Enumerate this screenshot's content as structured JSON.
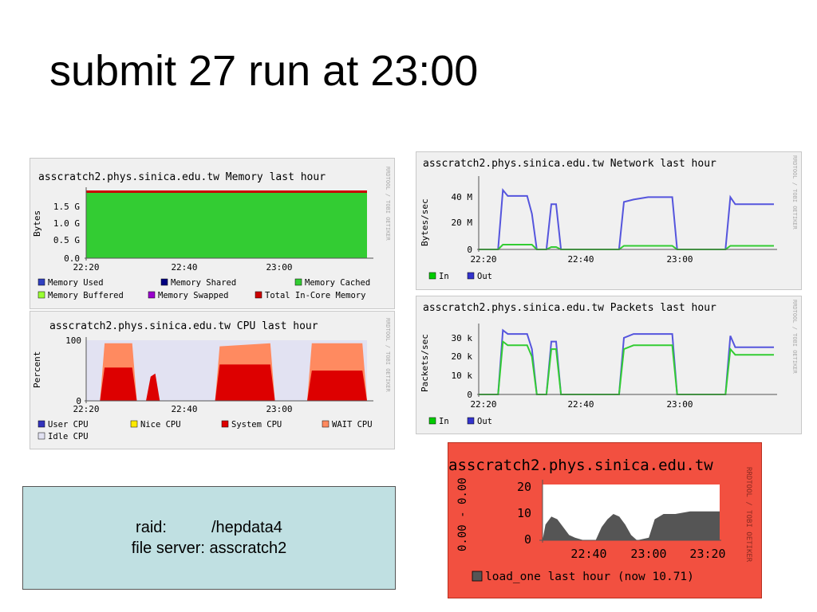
{
  "slide": {
    "title": "submit 27 run at 23:00"
  },
  "info_box": {
    "raid_label": "raid:",
    "raid_value": "/hepdata4",
    "fileserver_label": "file server:",
    "fileserver_value": "asscratch2"
  },
  "rrdtool_tag": "RRDTOOL / TOBI OETIKER",
  "chart_data": [
    {
      "id": "memory",
      "type": "area",
      "title": "asscratch2.phys.sinica.edu.tw Memory last hour",
      "ylabel": "Bytes",
      "yticks": [
        "0.0",
        "0.5 G",
        "1.0 G",
        "1.5 G"
      ],
      "xticks": [
        "22:20",
        "22:40",
        "23:00"
      ],
      "legend": [
        {
          "label": "Memory Used",
          "color": "#3040c0"
        },
        {
          "label": "Memory Shared",
          "color": "#000080"
        },
        {
          "label": "Memory Cached",
          "color": "#33cc33"
        },
        {
          "label": "Memory Buffered",
          "color": "#99ff33"
        },
        {
          "label": "Memory Swapped",
          "color": "#9900cc"
        },
        {
          "label": "Total In-Core Memory",
          "color": "#cc0000"
        }
      ]
    },
    {
      "id": "cpu",
      "type": "area",
      "title": "asscratch2.phys.sinica.edu.tw CPU last hour",
      "ylabel": "Percent",
      "yticks": [
        "0",
        "100"
      ],
      "xticks": [
        "22:20",
        "22:40",
        "23:00"
      ],
      "legend": [
        {
          "label": "User CPU",
          "color": "#3333bb"
        },
        {
          "label": "Nice CPU",
          "color": "#ffea00"
        },
        {
          "label": "System CPU",
          "color": "#dd0000"
        },
        {
          "label": "WAIT CPU",
          "color": "#ff8a60"
        },
        {
          "label": "Idle CPU",
          "color": "#e2e2f2"
        }
      ],
      "series": [
        {
          "name": "System CPU",
          "points": [
            [
              0,
              0
            ],
            [
              3,
              0
            ],
            [
              4,
              55
            ],
            [
              10,
              55
            ],
            [
              11,
              0
            ],
            [
              13,
              0
            ],
            [
              14,
              40
            ],
            [
              15,
              45
            ],
            [
              16,
              0
            ],
            [
              28,
              0
            ],
            [
              29,
              60
            ],
            [
              40,
              60
            ],
            [
              41,
              0
            ],
            [
              48,
              0
            ],
            [
              49,
              50
            ],
            [
              60,
              50
            ],
            [
              61,
              0
            ]
          ]
        },
        {
          "name": "WAIT CPU",
          "points": [
            [
              0,
              0
            ],
            [
              3,
              0
            ],
            [
              4,
              95
            ],
            [
              10,
              95
            ],
            [
              11,
              0
            ],
            [
              28,
              0
            ],
            [
              29,
              90
            ],
            [
              40,
              95
            ],
            [
              41,
              0
            ],
            [
              48,
              0
            ],
            [
              49,
              95
            ],
            [
              60,
              95
            ],
            [
              61,
              0
            ]
          ]
        }
      ]
    },
    {
      "id": "network",
      "type": "line",
      "title": "asscratch2.phys.sinica.edu.tw Network last hour",
      "ylabel": "Bytes/sec",
      "yticks": [
        "0",
        "20 M",
        "40 M"
      ],
      "xticks": [
        "22:20",
        "22:40",
        "23:00"
      ],
      "legend": [
        {
          "label": "In",
          "color": "#00cc00"
        },
        {
          "label": "Out",
          "color": "#3333cc"
        }
      ],
      "series": [
        {
          "name": "Out",
          "points": [
            [
              0,
              0
            ],
            [
              4,
              0
            ],
            [
              5,
              50
            ],
            [
              6,
              45
            ],
            [
              10,
              45
            ],
            [
              11,
              30
            ],
            [
              12,
              0
            ],
            [
              14,
              0
            ],
            [
              15,
              38
            ],
            [
              16,
              38
            ],
            [
              17,
              0
            ],
            [
              29,
              0
            ],
            [
              30,
              40
            ],
            [
              32,
              42
            ],
            [
              35,
              44
            ],
            [
              40,
              44
            ],
            [
              41,
              0
            ],
            [
              51,
              0
            ],
            [
              52,
              44
            ],
            [
              53,
              38
            ],
            [
              60,
              38
            ],
            [
              61,
              38
            ]
          ]
        },
        {
          "name": "In",
          "points": [
            [
              0,
              0
            ],
            [
              4,
              0
            ],
            [
              5,
              4
            ],
            [
              11,
              4
            ],
            [
              12,
              0
            ],
            [
              14,
              0
            ],
            [
              15,
              2
            ],
            [
              16,
              2
            ],
            [
              17,
              0
            ],
            [
              29,
              0
            ],
            [
              30,
              3
            ],
            [
              40,
              3
            ],
            [
              41,
              0
            ],
            [
              51,
              0
            ],
            [
              52,
              3
            ],
            [
              61,
              3
            ]
          ]
        }
      ]
    },
    {
      "id": "packets",
      "type": "line",
      "title": "asscratch2.phys.sinica.edu.tw Packets last hour",
      "ylabel": "Packets/sec",
      "yticks": [
        "0",
        "10 k",
        "20 k",
        "30 k"
      ],
      "xticks": [
        "22:20",
        "22:40",
        "23:00"
      ],
      "legend": [
        {
          "label": "In",
          "color": "#00cc00"
        },
        {
          "label": "Out",
          "color": "#3333cc"
        }
      ],
      "series": [
        {
          "name": "Out",
          "points": [
            [
              0,
              0
            ],
            [
              4,
              0
            ],
            [
              5,
              34
            ],
            [
              6,
              32
            ],
            [
              10,
              32
            ],
            [
              11,
              24
            ],
            [
              12,
              0
            ],
            [
              14,
              0
            ],
            [
              15,
              28
            ],
            [
              16,
              28
            ],
            [
              17,
              0
            ],
            [
              29,
              0
            ],
            [
              30,
              30
            ],
            [
              32,
              32
            ],
            [
              40,
              32
            ],
            [
              41,
              0
            ],
            [
              51,
              0
            ],
            [
              52,
              31
            ],
            [
              53,
              25
            ],
            [
              61,
              25
            ]
          ]
        },
        {
          "name": "In",
          "points": [
            [
              0,
              0
            ],
            [
              4,
              0
            ],
            [
              5,
              28
            ],
            [
              6,
              26
            ],
            [
              10,
              26
            ],
            [
              11,
              20
            ],
            [
              12,
              0
            ],
            [
              14,
              0
            ],
            [
              15,
              24
            ],
            [
              16,
              24
            ],
            [
              17,
              0
            ],
            [
              29,
              0
            ],
            [
              30,
              24
            ],
            [
              32,
              26
            ],
            [
              40,
              26
            ],
            [
              41,
              0
            ],
            [
              51,
              0
            ],
            [
              52,
              24
            ],
            [
              53,
              21
            ],
            [
              61,
              21
            ]
          ]
        }
      ]
    },
    {
      "id": "load",
      "type": "area",
      "title": "asscratch2.phys.sinica.edu.tw",
      "ylabel": "0.00 - 0.00",
      "yticks": [
        "0",
        "10",
        "20"
      ],
      "xticks": [
        "22:40",
        "23:00",
        "23:20"
      ],
      "legend": [
        {
          "label": "load_one last hour (now 10.71)",
          "color": "#555555"
        }
      ],
      "bg_color": "#f25040",
      "series": [
        {
          "name": "load_one",
          "points": [
            [
              0,
              0
            ],
            [
              1,
              6
            ],
            [
              3,
              9
            ],
            [
              5,
              8
            ],
            [
              7,
              5
            ],
            [
              9,
              2
            ],
            [
              11,
              1
            ],
            [
              14,
              0
            ],
            [
              18,
              0
            ],
            [
              20,
              5
            ],
            [
              22,
              8
            ],
            [
              24,
              10
            ],
            [
              26,
              9
            ],
            [
              28,
              6
            ],
            [
              30,
              2
            ],
            [
              32,
              0
            ],
            [
              36,
              1
            ],
            [
              38,
              8
            ],
            [
              41,
              10
            ],
            [
              45,
              10
            ],
            [
              50,
              11
            ],
            [
              55,
              11
            ],
            [
              60,
              11
            ]
          ]
        }
      ]
    }
  ]
}
